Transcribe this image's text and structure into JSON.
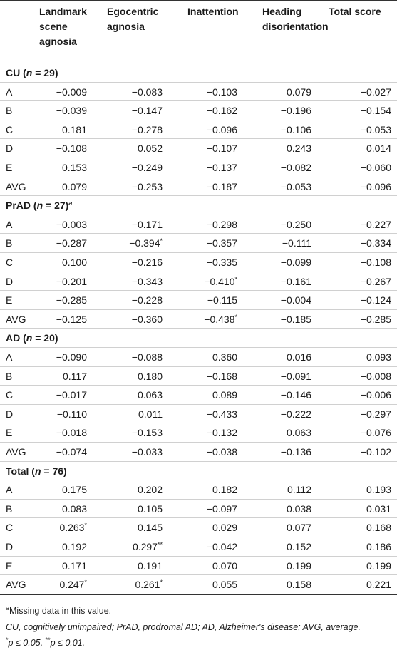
{
  "table": {
    "columns": [
      "Landmark scene agnosia",
      "Egocentric agnosia",
      "Inattention",
      "Heading disorientation",
      "Total score"
    ],
    "groups": [
      {
        "title_parts": [
          "CU (",
          "n",
          " = 29)"
        ],
        "rows": [
          [
            "A",
            "−0.009",
            "−0.083",
            "−0.103",
            "0.079",
            "−0.027"
          ],
          [
            "B",
            "−0.039",
            "−0.147",
            "−0.162",
            "−0.196",
            "−0.154"
          ],
          [
            "C",
            "0.181",
            "−0.278",
            "−0.096",
            "−0.106",
            "−0.053"
          ],
          [
            "D",
            "−0.108",
            "0.052",
            "−0.107",
            "0.243",
            "0.014"
          ],
          [
            "E",
            "0.153",
            "−0.249",
            "−0.137",
            "−0.082",
            "−0.060"
          ],
          [
            "AVG",
            "0.079",
            "−0.253",
            "−0.187",
            "−0.053",
            "−0.096"
          ]
        ]
      },
      {
        "title_parts": [
          "PrAD (",
          "n",
          " = 27)"
        ],
        "sup": "a",
        "rows": [
          [
            "A",
            "−0.003",
            "−0.171",
            "−0.298",
            "−0.250",
            "−0.227"
          ],
          [
            "B",
            "−0.287",
            {
              "text": "−0.394",
              "sup": "*"
            },
            "−0.357",
            "−0.111",
            "−0.334"
          ],
          [
            "C",
            "0.100",
            "−0.216",
            "−0.335",
            "−0.099",
            "−0.108"
          ],
          [
            "D",
            "−0.201",
            "−0.343",
            {
              "text": "−0.410",
              "sup": "*"
            },
            "−0.161",
            "−0.267"
          ],
          [
            "E",
            "−0.285",
            "−0.228",
            "−0.115",
            "−0.004",
            "−0.124"
          ],
          [
            "AVG",
            "−0.125",
            "−0.360",
            {
              "text": "−0.438",
              "sup": "*"
            },
            "−0.185",
            "−0.285"
          ]
        ]
      },
      {
        "title_parts": [
          "AD (",
          "n",
          " = 20)"
        ],
        "rows": [
          [
            "A",
            "−0.090",
            "−0.088",
            "0.360",
            "0.016",
            "0.093"
          ],
          [
            "B",
            "0.117",
            "0.180",
            "−0.168",
            "−0.091",
            "−0.008"
          ],
          [
            "C",
            "−0.017",
            "0.063",
            "0.089",
            "−0.146",
            "−0.006"
          ],
          [
            "D",
            "−0.110",
            "0.011",
            "−0.433",
            "−0.222",
            "−0.297"
          ],
          [
            "E",
            "−0.018",
            "−0.153",
            "−0.132",
            "0.063",
            "−0.076"
          ],
          [
            "AVG",
            "−0.074",
            "−0.033",
            "−0.038",
            "−0.136",
            "−0.102"
          ]
        ]
      },
      {
        "title_parts": [
          "Total (",
          "n",
          " = 76)"
        ],
        "rows": [
          [
            "A",
            "0.175",
            "0.202",
            "0.182",
            "0.112",
            "0.193"
          ],
          [
            "B",
            "0.083",
            "0.105",
            "−0.097",
            "0.038",
            "0.031"
          ],
          [
            "C",
            {
              "text": "0.263",
              "sup": "*"
            },
            "0.145",
            "0.029",
            "0.077",
            "0.168"
          ],
          [
            "D",
            "0.192",
            {
              "text": "0.297",
              "sup": "**"
            },
            "−0.042",
            "0.152",
            "0.186"
          ],
          [
            "E",
            "0.171",
            "0.191",
            "0.070",
            "0.199",
            "0.199"
          ],
          [
            "AVG",
            {
              "text": "0.247",
              "sup": "*"
            },
            {
              "text": "0.261",
              "sup": "*"
            },
            "0.055",
            "0.158",
            "0.221"
          ]
        ]
      }
    ],
    "footnotes": [
      [
        {
          "text": "a",
          "sup": true,
          "italic": true
        },
        {
          "text": "Missing data in this value."
        }
      ],
      [
        {
          "text": "CU, cognitively unimpaired; PrAD, prodromal AD; AD, Alzheimer's disease; AVG, average.",
          "italic": true
        }
      ],
      [
        {
          "text": "*",
          "sup": true
        },
        {
          "text": "p ≤ 0.05, ",
          "italic": true
        },
        {
          "text": "**",
          "sup": true
        },
        {
          "text": "p ≤ 0.01.",
          "italic": true
        }
      ]
    ]
  }
}
